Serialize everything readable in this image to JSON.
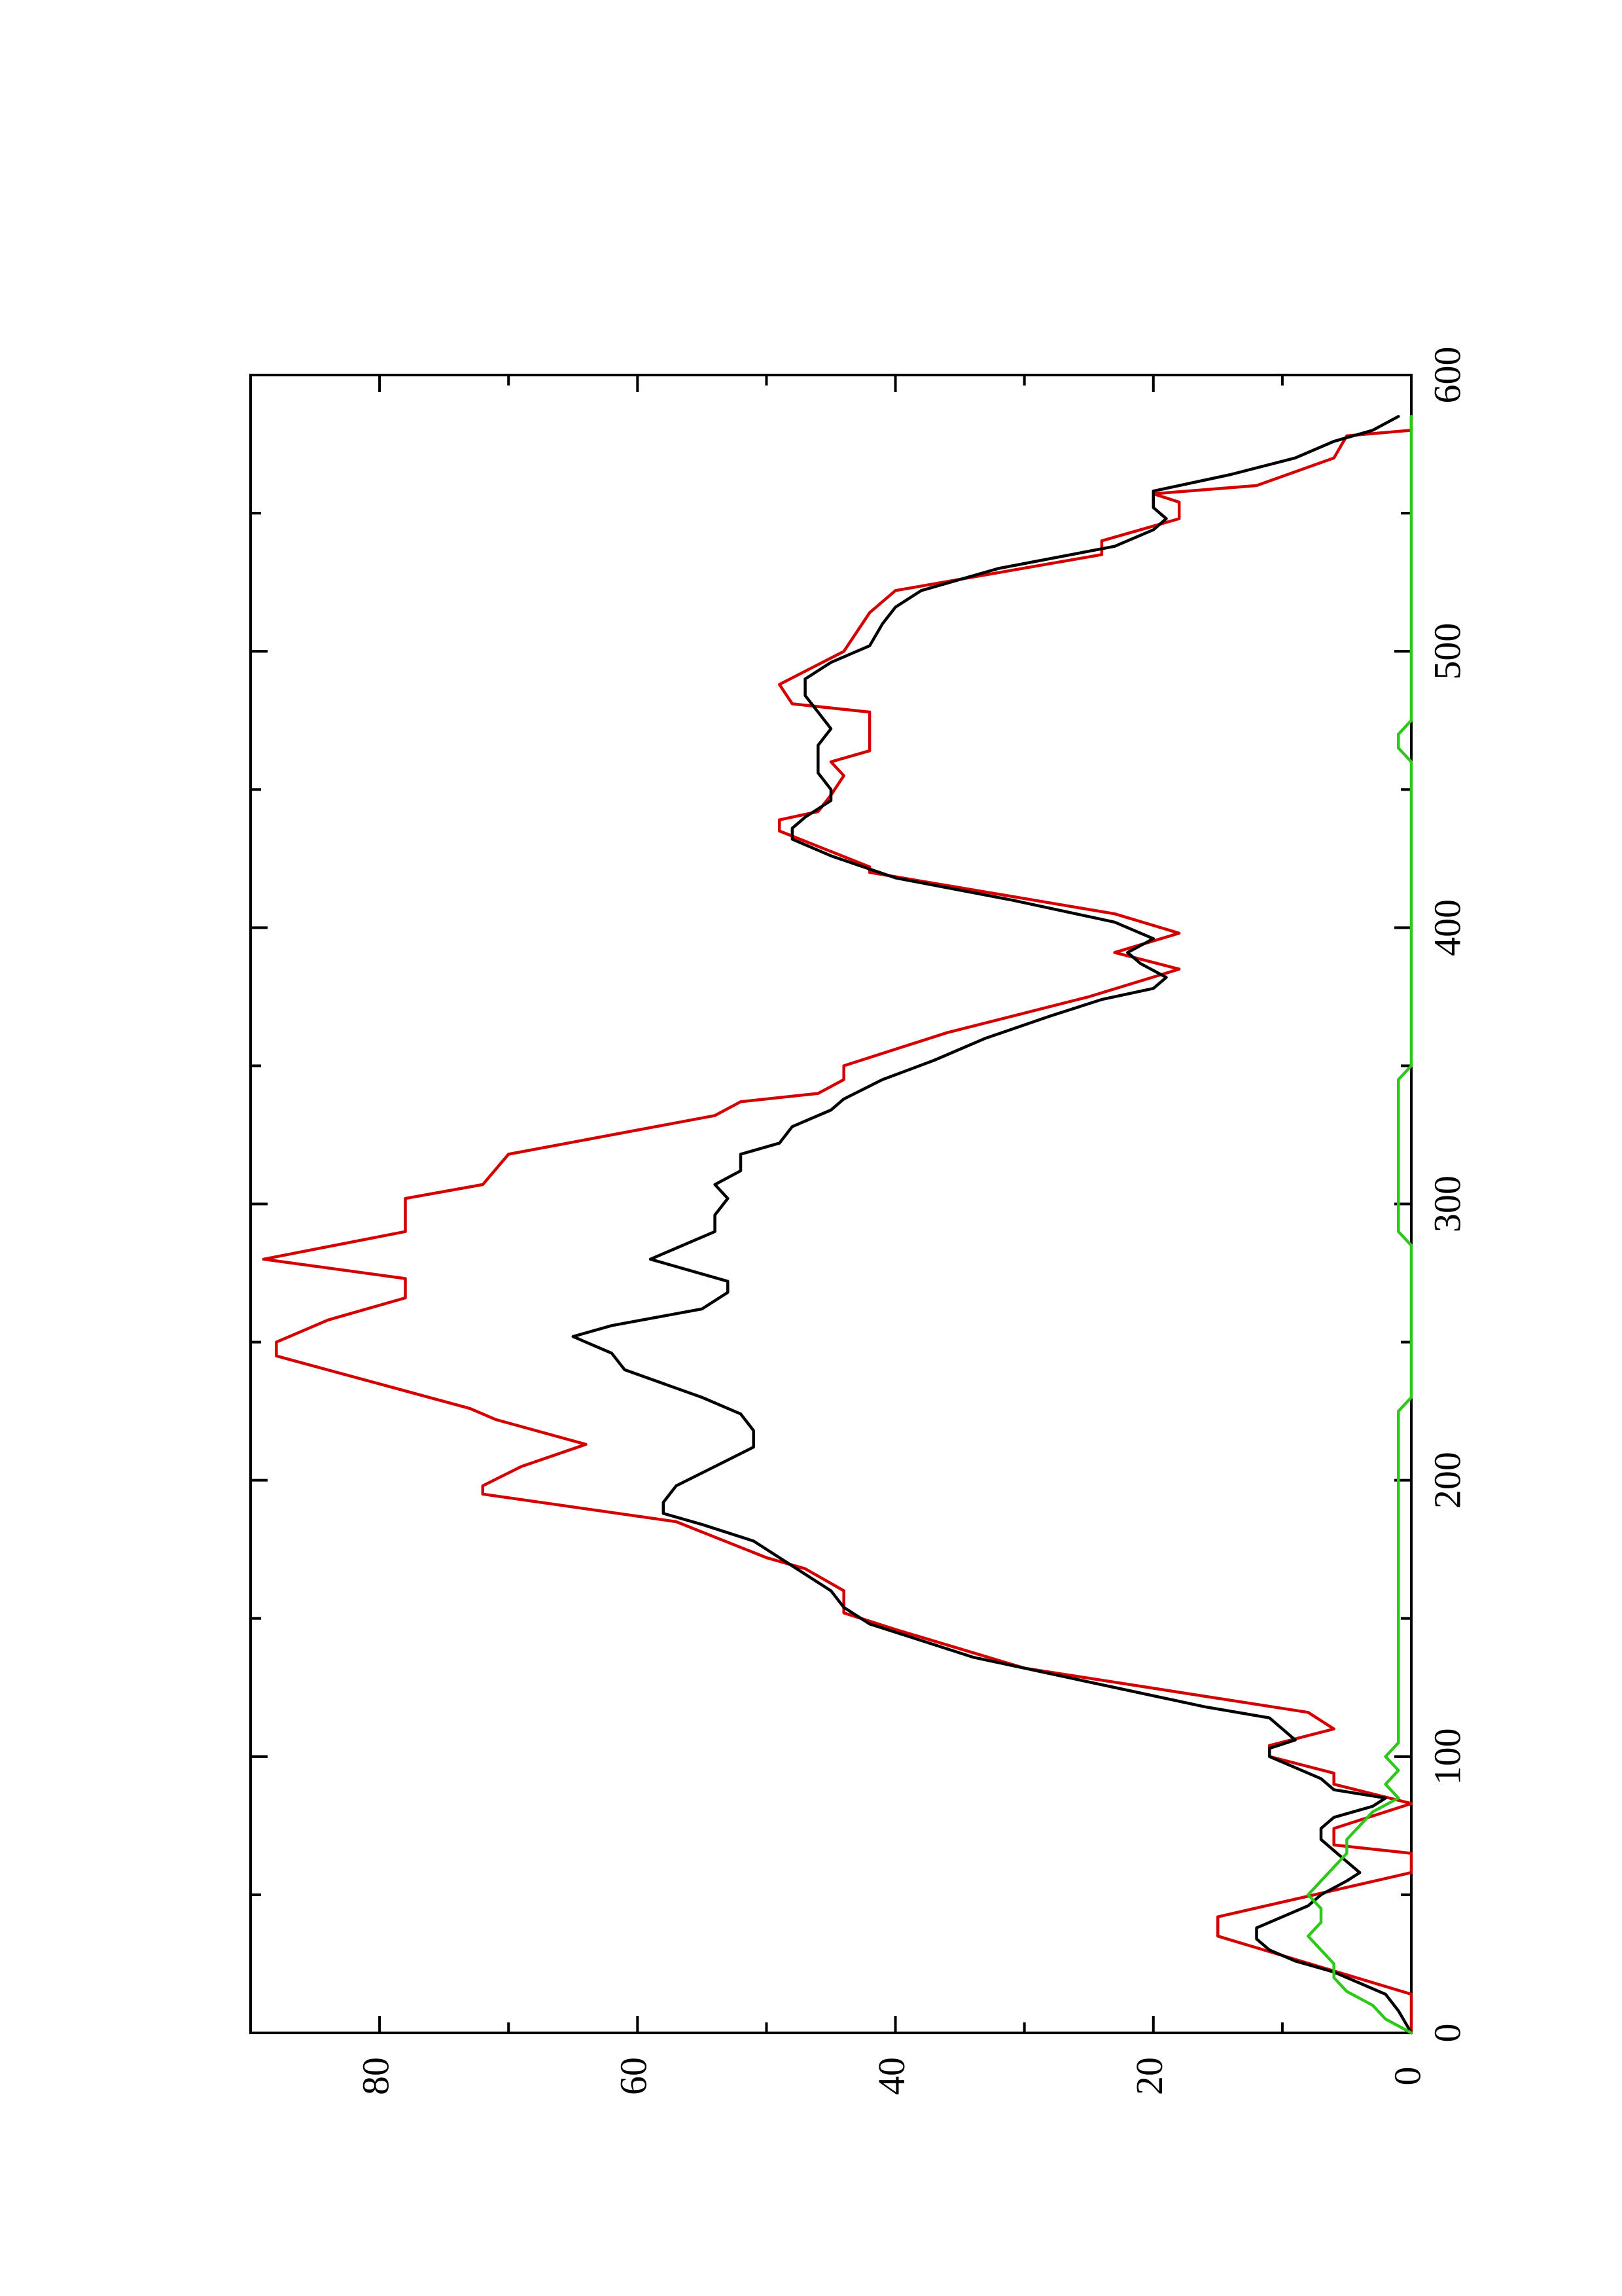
{
  "chart_data": {
    "type": "line",
    "orientation": "rotated-90-ccw",
    "title": "",
    "xlabel": "",
    "ylabel": "",
    "xlim": [
      0,
      600
    ],
    "ylim": [
      0,
      90
    ],
    "x_ticks": [
      "0",
      "100",
      "200",
      "300",
      "400",
      "500",
      "600"
    ],
    "y_ticks": [
      "0",
      "20",
      "40",
      "60",
      "80"
    ],
    "grid": false,
    "legend": "none",
    "series": [
      {
        "color": "#d40000",
        "style": "stepped",
        "points": [
          [
            0,
            0
          ],
          [
            14,
            0
          ],
          [
            35,
            15
          ],
          [
            42,
            15
          ],
          [
            58,
            0
          ],
          [
            65,
            0
          ],
          [
            68,
            6
          ],
          [
            74,
            6
          ],
          [
            83,
            0
          ],
          [
            90,
            6
          ],
          [
            94,
            6
          ],
          [
            100,
            11
          ],
          [
            104,
            11
          ],
          [
            110,
            6
          ],
          [
            116,
            8
          ],
          [
            132,
            30
          ],
          [
            146,
            40
          ],
          [
            152,
            44
          ],
          [
            160,
            44
          ],
          [
            168,
            47
          ],
          [
            172,
            50
          ],
          [
            185,
            57
          ],
          [
            195,
            72
          ],
          [
            198,
            72
          ],
          [
            205,
            69
          ],
          [
            213,
            64
          ],
          [
            222,
            71
          ],
          [
            226,
            73
          ],
          [
            245,
            88
          ],
          [
            250,
            88
          ],
          [
            258,
            84
          ],
          [
            266,
            78
          ],
          [
            273,
            78
          ],
          [
            280,
            89
          ],
          [
            290,
            78
          ],
          [
            302,
            78
          ],
          [
            307,
            72
          ],
          [
            318,
            70
          ],
          [
            332,
            54
          ],
          [
            337,
            52
          ],
          [
            340,
            46
          ],
          [
            345,
            44
          ],
          [
            350,
            44
          ],
          [
            362,
            36
          ],
          [
            375,
            25
          ],
          [
            385,
            18
          ],
          [
            391,
            23
          ],
          [
            398,
            18
          ],
          [
            405,
            23
          ],
          [
            420,
            42
          ],
          [
            422,
            42
          ],
          [
            435,
            49
          ],
          [
            439,
            49
          ],
          [
            442,
            46
          ],
          [
            448,
            45
          ],
          [
            455,
            44
          ],
          [
            460,
            45
          ],
          [
            464,
            42
          ],
          [
            478,
            42
          ],
          [
            481,
            48
          ],
          [
            488,
            49
          ],
          [
            500,
            44
          ],
          [
            514,
            42
          ],
          [
            522,
            40
          ],
          [
            535,
            24
          ],
          [
            540,
            24
          ],
          [
            548,
            18
          ],
          [
            554,
            18
          ],
          [
            557,
            20
          ],
          [
            560,
            12
          ],
          [
            570,
            6
          ],
          [
            578,
            5
          ],
          [
            580,
            0
          ],
          [
            585,
            0
          ]
        ]
      },
      {
        "color": "#000000",
        "style": "smooth",
        "points": [
          [
            0,
            0
          ],
          [
            8,
            1
          ],
          [
            14,
            2
          ],
          [
            18,
            4
          ],
          [
            22,
            6
          ],
          [
            26,
            9
          ],
          [
            30,
            11
          ],
          [
            34,
            12
          ],
          [
            38,
            12
          ],
          [
            42,
            10
          ],
          [
            46,
            8
          ],
          [
            50,
            7
          ],
          [
            55,
            5
          ],
          [
            58,
            4
          ],
          [
            62,
            5
          ],
          [
            66,
            6
          ],
          [
            70,
            7
          ],
          [
            74,
            7
          ],
          [
            78,
            6
          ],
          [
            82,
            3
          ],
          [
            85,
            2
          ],
          [
            88,
            6
          ],
          [
            92,
            7
          ],
          [
            96,
            9
          ],
          [
            100,
            11
          ],
          [
            103,
            11
          ],
          [
            106,
            9
          ],
          [
            110,
            10
          ],
          [
            114,
            11
          ],
          [
            118,
            16
          ],
          [
            124,
            22
          ],
          [
            130,
            28
          ],
          [
            136,
            34
          ],
          [
            142,
            38
          ],
          [
            148,
            42
          ],
          [
            154,
            44
          ],
          [
            160,
            45
          ],
          [
            166,
            47
          ],
          [
            172,
            49
          ],
          [
            178,
            51
          ],
          [
            184,
            55
          ],
          [
            188,
            58
          ],
          [
            192,
            58
          ],
          [
            198,
            57
          ],
          [
            205,
            54
          ],
          [
            212,
            51
          ],
          [
            218,
            51
          ],
          [
            224,
            52
          ],
          [
            230,
            55
          ],
          [
            240,
            61
          ],
          [
            246,
            62
          ],
          [
            252,
            65
          ],
          [
            256,
            62
          ],
          [
            262,
            55
          ],
          [
            268,
            53
          ],
          [
            272,
            53
          ],
          [
            276,
            56
          ],
          [
            280,
            59
          ],
          [
            284,
            57
          ],
          [
            290,
            54
          ],
          [
            296,
            54
          ],
          [
            302,
            53
          ],
          [
            307,
            54
          ],
          [
            312,
            52
          ],
          [
            318,
            52
          ],
          [
            322,
            49
          ],
          [
            328,
            48
          ],
          [
            334,
            45
          ],
          [
            338,
            44
          ],
          [
            345,
            41
          ],
          [
            352,
            37
          ],
          [
            360,
            33
          ],
          [
            368,
            28
          ],
          [
            374,
            24
          ],
          [
            378,
            20
          ],
          [
            382,
            19
          ],
          [
            387,
            21
          ],
          [
            391,
            22
          ],
          [
            396,
            20
          ],
          [
            402,
            23
          ],
          [
            410,
            31
          ],
          [
            418,
            40
          ],
          [
            426,
            45
          ],
          [
            432,
            48
          ],
          [
            436,
            48
          ],
          [
            440,
            47
          ],
          [
            446,
            45
          ],
          [
            450,
            45
          ],
          [
            456,
            46
          ],
          [
            460,
            46
          ],
          [
            466,
            46
          ],
          [
            472,
            45
          ],
          [
            478,
            46
          ],
          [
            484,
            47
          ],
          [
            490,
            47
          ],
          [
            496,
            45
          ],
          [
            502,
            42
          ],
          [
            510,
            41
          ],
          [
            516,
            40
          ],
          [
            522,
            38
          ],
          [
            530,
            32
          ],
          [
            538,
            23
          ],
          [
            544,
            20
          ],
          [
            548,
            19
          ],
          [
            552,
            20
          ],
          [
            558,
            20
          ],
          [
            564,
            14
          ],
          [
            570,
            9
          ],
          [
            576,
            6
          ],
          [
            580,
            3
          ],
          [
            585,
            1
          ]
        ]
      },
      {
        "color": "#2ec81a",
        "style": "noisy",
        "points": [
          [
            0,
            0
          ],
          [
            5,
            2
          ],
          [
            10,
            3
          ],
          [
            15,
            5
          ],
          [
            20,
            6
          ],
          [
            25,
            6
          ],
          [
            30,
            7
          ],
          [
            35,
            8
          ],
          [
            40,
            7
          ],
          [
            45,
            7
          ],
          [
            50,
            8
          ],
          [
            55,
            7
          ],
          [
            60,
            6
          ],
          [
            65,
            5
          ],
          [
            70,
            5
          ],
          [
            75,
            4
          ],
          [
            80,
            3
          ],
          [
            85,
            1
          ],
          [
            90,
            2
          ],
          [
            95,
            1
          ],
          [
            100,
            2
          ],
          [
            105,
            1
          ],
          [
            110,
            1
          ],
          [
            115,
            1
          ],
          [
            120,
            1
          ],
          [
            125,
            1
          ],
          [
            130,
            1
          ],
          [
            135,
            1
          ],
          [
            140,
            1
          ],
          [
            145,
            1
          ],
          [
            150,
            1
          ],
          [
            155,
            1
          ],
          [
            160,
            1
          ],
          [
            165,
            1
          ],
          [
            170,
            1
          ],
          [
            175,
            1
          ],
          [
            180,
            1
          ],
          [
            185,
            1
          ],
          [
            190,
            1
          ],
          [
            195,
            1
          ],
          [
            200,
            1
          ],
          [
            205,
            1
          ],
          [
            210,
            1
          ],
          [
            215,
            1
          ],
          [
            220,
            1
          ],
          [
            225,
            1
          ],
          [
            230,
            0
          ],
          [
            235,
            0
          ],
          [
            240,
            0
          ],
          [
            245,
            0
          ],
          [
            250,
            0
          ],
          [
            255,
            0
          ],
          [
            260,
            0
          ],
          [
            265,
            0
          ],
          [
            270,
            0
          ],
          [
            275,
            0
          ],
          [
            280,
            0
          ],
          [
            285,
            0
          ],
          [
            290,
            1
          ],
          [
            295,
            1
          ],
          [
            300,
            1
          ],
          [
            305,
            1
          ],
          [
            310,
            1
          ],
          [
            315,
            1
          ],
          [
            320,
            1
          ],
          [
            325,
            1
          ],
          [
            330,
            1
          ],
          [
            335,
            1
          ],
          [
            340,
            1
          ],
          [
            345,
            1
          ],
          [
            350,
            0
          ],
          [
            355,
            0
          ],
          [
            360,
            0
          ],
          [
            365,
            0
          ],
          [
            370,
            0
          ],
          [
            375,
            0
          ],
          [
            380,
            0
          ],
          [
            385,
            0
          ],
          [
            390,
            0
          ],
          [
            395,
            0
          ],
          [
            400,
            0
          ],
          [
            405,
            0
          ],
          [
            410,
            0
          ],
          [
            415,
            0
          ],
          [
            420,
            0
          ],
          [
            425,
            0
          ],
          [
            430,
            0
          ],
          [
            435,
            0
          ],
          [
            440,
            0
          ],
          [
            445,
            0
          ],
          [
            450,
            0
          ],
          [
            455,
            0
          ],
          [
            460,
            0
          ],
          [
            465,
            1
          ],
          [
            470,
            1
          ],
          [
            475,
            0
          ],
          [
            480,
            0
          ],
          [
            485,
            0
          ],
          [
            490,
            0
          ],
          [
            495,
            0
          ],
          [
            500,
            0
          ],
          [
            505,
            0
          ],
          [
            510,
            0
          ],
          [
            515,
            0
          ],
          [
            520,
            0
          ],
          [
            525,
            0
          ],
          [
            530,
            0
          ],
          [
            535,
            0
          ],
          [
            540,
            0
          ],
          [
            545,
            0
          ],
          [
            550,
            0
          ],
          [
            555,
            0
          ],
          [
            560,
            0
          ],
          [
            565,
            0
          ],
          [
            570,
            0
          ],
          [
            575,
            0
          ],
          [
            580,
            0
          ],
          [
            585,
            0
          ]
        ]
      }
    ]
  }
}
